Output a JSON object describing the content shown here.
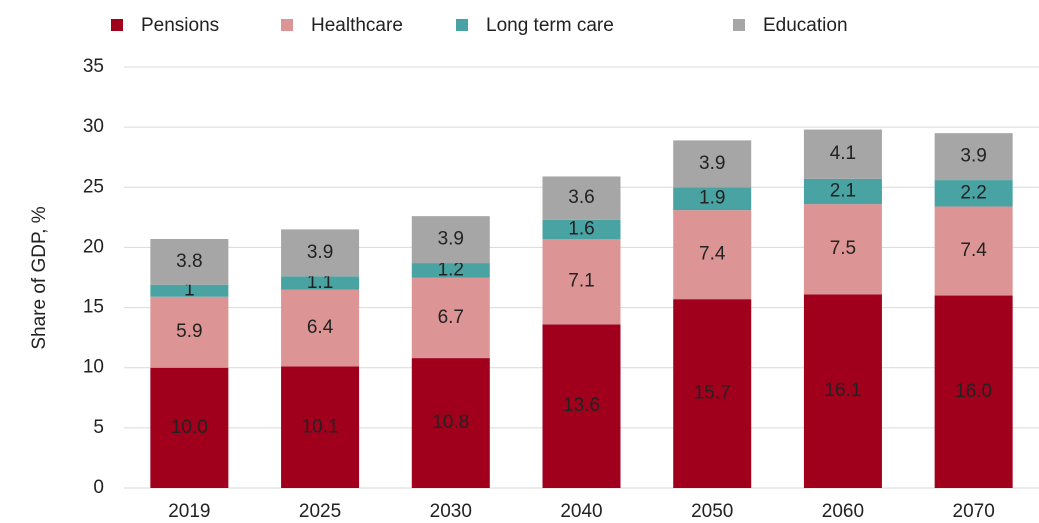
{
  "chart_data": {
    "type": "stacked-bar",
    "y_label": "Share of GDP, %",
    "categories": [
      "2019",
      "2025",
      "2030",
      "2040",
      "2050",
      "2060",
      "2070"
    ],
    "series": [
      {
        "name": "Pensions",
        "color": "#a0001c",
        "values": [
          10.0,
          10.1,
          10.8,
          13.6,
          15.7,
          16.1,
          16.0
        ],
        "value_labels": [
          "10.0",
          "10.1",
          "10.8",
          "13.6",
          "15.7",
          "16.1",
          "16.0"
        ]
      },
      {
        "name": "Healthcare",
        "color": "#dc9494",
        "values": [
          5.9,
          6.4,
          6.7,
          7.1,
          7.4,
          7.5,
          7.4
        ]
      },
      {
        "name": "Long term care",
        "color": "#4aa3a3",
        "values": [
          1,
          1.1,
          1.2,
          1.6,
          1.9,
          2.1,
          2.2
        ]
      },
      {
        "name": "Education",
        "color": "#a6a6a6",
        "values": [
          3.8,
          3.9,
          3.9,
          3.6,
          3.9,
          4.1,
          3.9
        ]
      }
    ],
    "ylim": [
      0,
      35
    ],
    "yticks": [
      0,
      5,
      10,
      15,
      20,
      25,
      30,
      35
    ],
    "grid": true,
    "legend": "top"
  }
}
